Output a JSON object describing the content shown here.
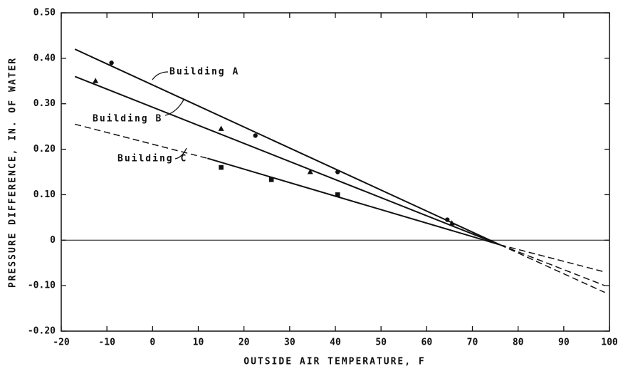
{
  "chart_data": {
    "type": "scatter",
    "xlabel": "OUTSIDE AIR TEMPERATURE, F",
    "ylabel": "PRESSURE DIFFERENCE, IN. OF WATER",
    "xlim": [
      -20,
      100
    ],
    "xticks": [
      -20,
      -10,
      0,
      10,
      20,
      30,
      40,
      50,
      60,
      70,
      80,
      90,
      100
    ],
    "ylim": [
      -0.2,
      0.5
    ],
    "yticks": [
      {
        "value": -0.2,
        "label": "-0.20"
      },
      {
        "value": -0.1,
        "label": "-0.10"
      },
      0,
      {
        "value": 0.1,
        "label": "0.10"
      },
      {
        "value": 0.2,
        "label": "0.20"
      },
      {
        "value": 0.3,
        "label": "0.30"
      },
      {
        "value": 0.4,
        "label": "0.40"
      },
      {
        "value": 0.5,
        "label": "0.50"
      }
    ],
    "zero_line": true,
    "series": [
      {
        "name": "Building A",
        "color": "#111111",
        "marker": "circle",
        "x": [
          -9,
          22.5,
          40.5,
          64.5
        ],
        "values": [
          0.39,
          0.23,
          0.15,
          0.045
        ],
        "fit": [
          {
            "style": "solid",
            "x": [
              -17,
              76
            ],
            "values": [
              0.42,
              -0.01
            ]
          },
          {
            "style": "dashed",
            "x": [
              76,
              99
            ],
            "values": [
              -0.01,
              -0.115
            ]
          }
        ]
      },
      {
        "name": "Building B",
        "color": "#111111",
        "marker": "triangle",
        "x": [
          -12.5,
          15,
          34.5,
          65.5
        ],
        "values": [
          0.35,
          0.245,
          0.15,
          0.037
        ],
        "fit": [
          {
            "style": "solid",
            "x": [
              -17,
              76
            ],
            "values": [
              0.36,
              -0.01
            ]
          },
          {
            "style": "dashed",
            "x": [
              76,
              99
            ],
            "values": [
              -0.01,
              -0.1
            ]
          }
        ]
      },
      {
        "name": "Building C",
        "color": "#111111",
        "marker": "square",
        "x": [
          15,
          26,
          40.5
        ],
        "values": [
          0.16,
          0.133,
          0.1
        ],
        "fit": [
          {
            "style": "dashed",
            "x": [
              -17,
              12
            ],
            "values": [
              0.255,
              0.18
            ]
          },
          {
            "style": "solid",
            "x": [
              12,
              76
            ],
            "values": [
              0.18,
              -0.01
            ]
          },
          {
            "style": "dashed",
            "x": [
              76,
              99
            ],
            "values": [
              -0.01,
              -0.07
            ]
          }
        ]
      }
    ]
  }
}
